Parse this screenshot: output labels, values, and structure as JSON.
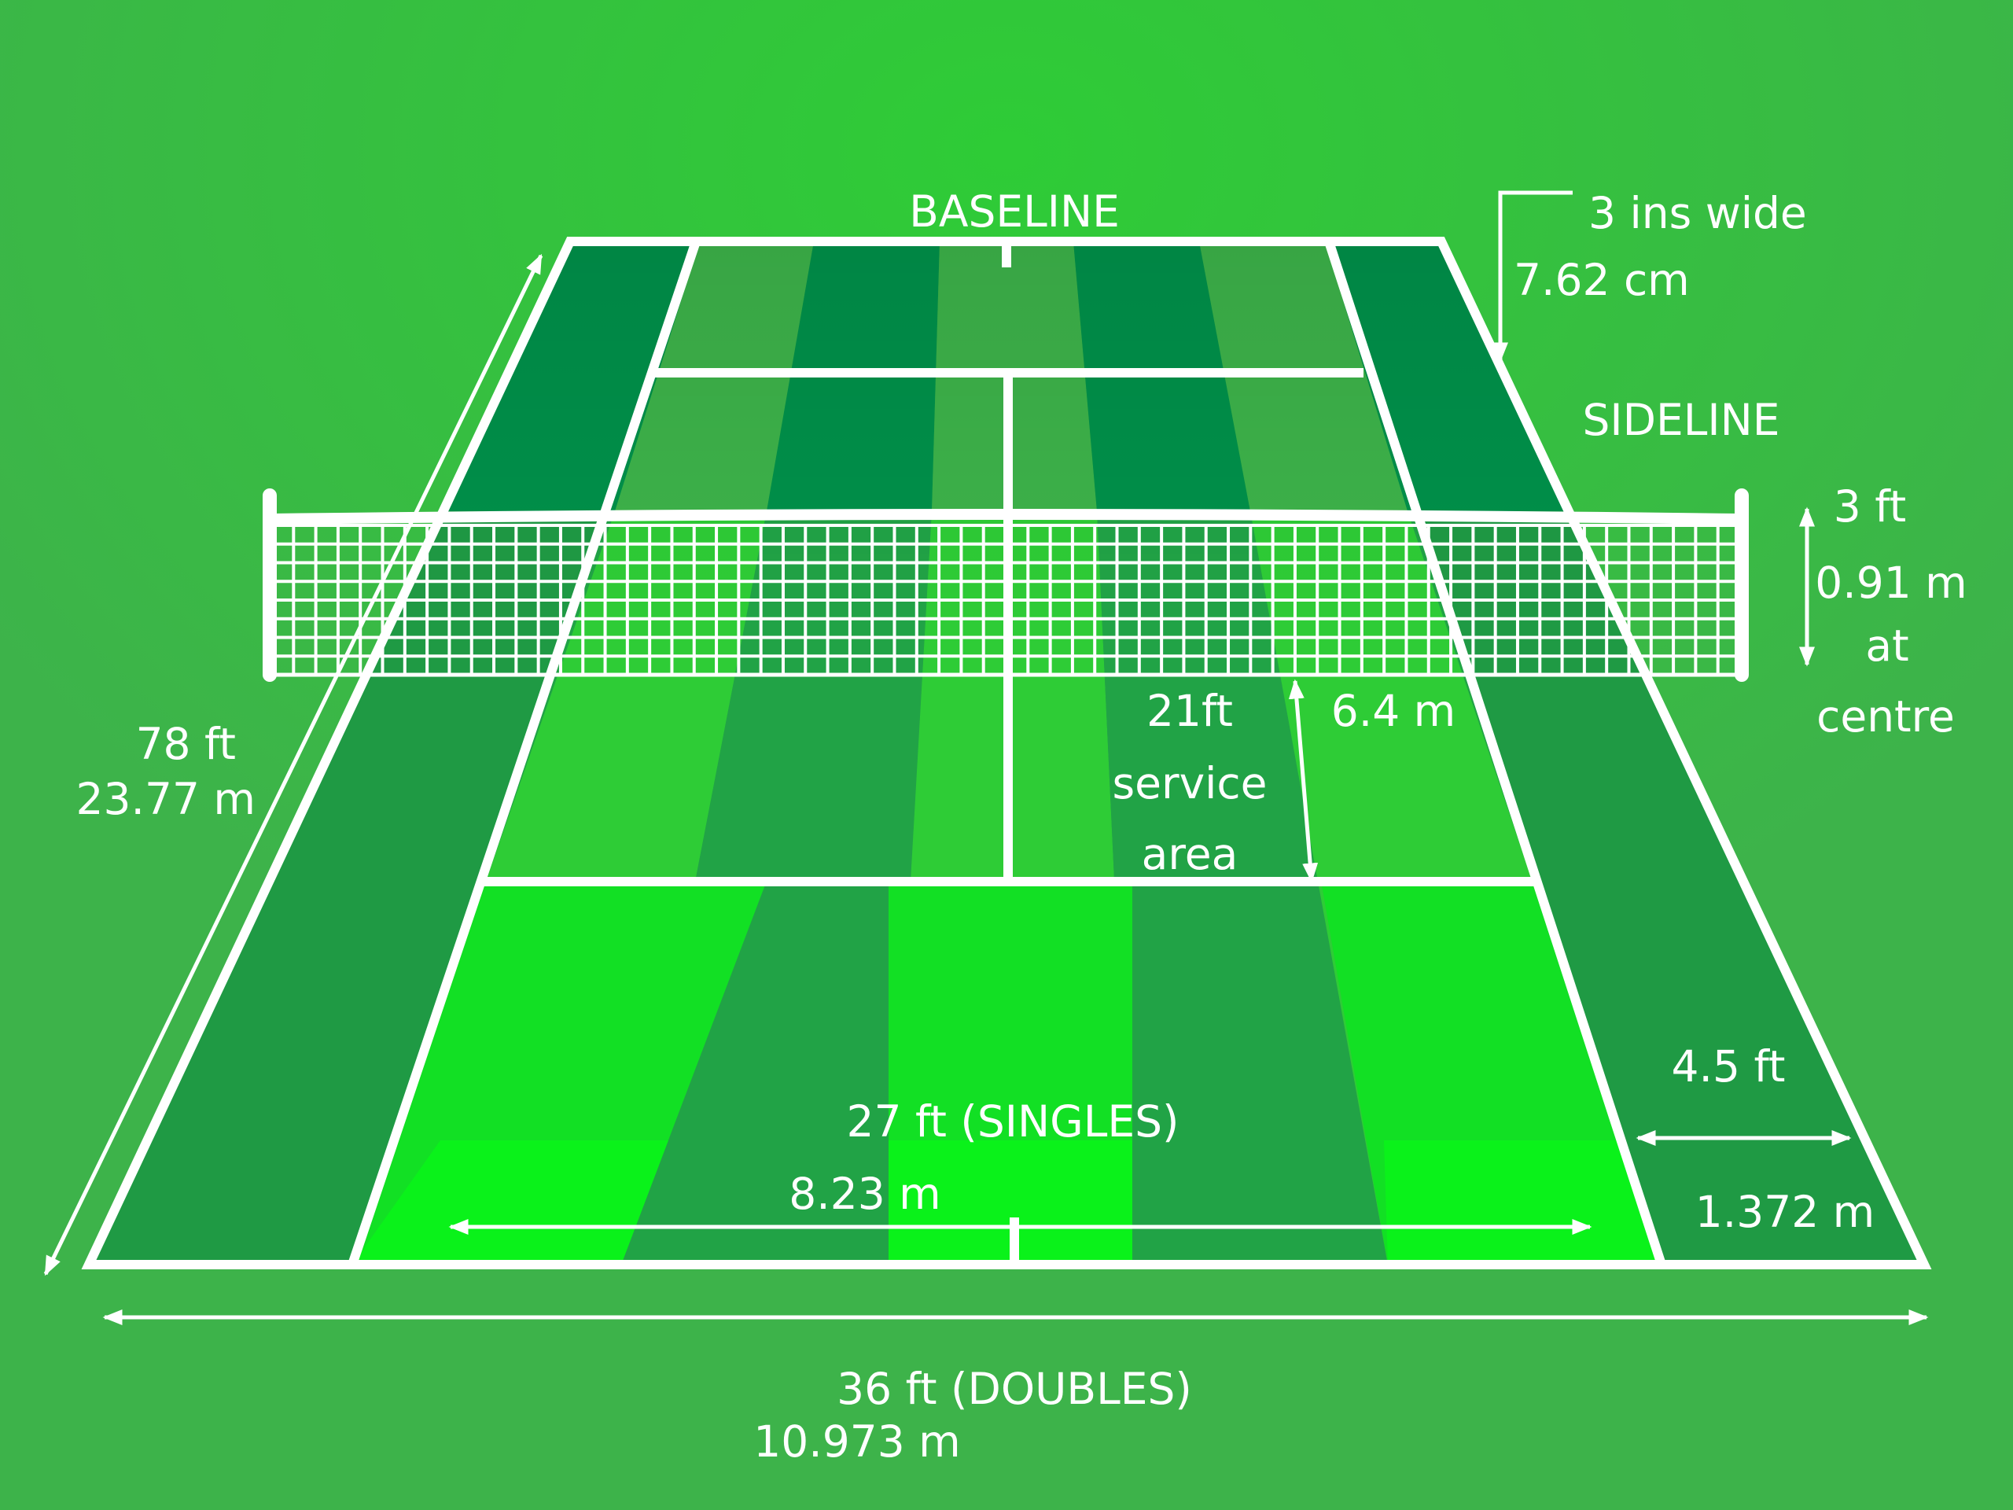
{
  "labels": {
    "baseline": "BASELINE",
    "line_width_imperial": "3 ins wide",
    "line_width_metric": "7.62 cm",
    "sideline": "SIDELINE",
    "net_height_imperial": "3 ft",
    "net_height_metric": "0.91 m",
    "net_height_at": "at",
    "net_height_centre": "centre",
    "length_imperial": "78 ft",
    "length_metric": "23.77 m",
    "service_imperial": "21ft",
    "service_word": "service",
    "service_area": "area",
    "service_metric": "6.4 m",
    "alley_imperial": "4.5 ft",
    "alley_metric": "1.372 m",
    "singles_imperial": "27 ft (SINGLES)",
    "singles_metric": "8.23 m",
    "doubles_imperial": "36 ft (DOUBLES)",
    "doubles_metric": "10.973 m"
  },
  "colors": {
    "background": "#3db34a",
    "background_glow": "#2ecc36",
    "court_dark": "#00914a",
    "court_mid": "#21a346",
    "court_light": "#3db34a",
    "court_bright": "#0af21a",
    "lines": "#ffffff"
  }
}
